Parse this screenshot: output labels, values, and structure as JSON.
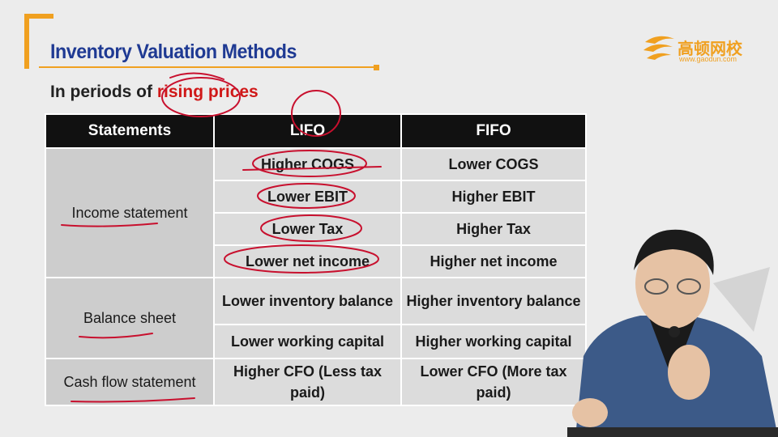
{
  "slide": {
    "title": "Inventory Valuation Methods",
    "subtitle_prefix": "In periods of ",
    "subtitle_highlight": "rising prices"
  },
  "logo": {
    "name": "高顿网校",
    "url_text": "www.gaodun.com",
    "color": "#f0a020"
  },
  "table": {
    "headers": [
      "Statements",
      "LIFO",
      "FIFO"
    ],
    "groups": [
      {
        "category": "Income statement",
        "rows": [
          {
            "lifo": "Higher COGS",
            "fifo": "Lower COGS"
          },
          {
            "lifo": "Lower EBIT",
            "fifo": "Higher EBIT"
          },
          {
            "lifo": "Lower Tax",
            "fifo": "Higher Tax"
          },
          {
            "lifo": "Lower net income",
            "fifo": "Higher net income"
          }
        ]
      },
      {
        "category": "Balance sheet",
        "rows": [
          {
            "lifo": "Lower inventory balance",
            "fifo": "Higher inventory balance"
          },
          {
            "lifo": "Lower working capital",
            "fifo": "Higher working capital"
          }
        ]
      },
      {
        "category": "Cash flow statement",
        "rows": [
          {
            "lifo": "Higher CFO (Less tax paid)",
            "fifo": "Lower CFO (More tax paid)"
          }
        ]
      }
    ]
  },
  "colors": {
    "title_blue": "#1f3a93",
    "accent_orange": "#f0a020",
    "annotation_red": "#c8102e",
    "header_black": "#111111"
  }
}
